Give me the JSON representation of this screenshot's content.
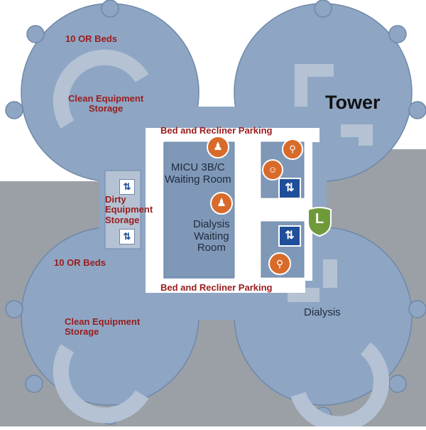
{
  "labels": {
    "or_beds_top": "10 OR Beds",
    "clean_storage_top": "Clean Equipment\nStorage",
    "tower": "Tower",
    "parking_top": "Bed and Recliner Parking",
    "micu": "MICU 3B/C\nWaiting Room",
    "dirty_storage": "Dirty\nEquipment\nStorage",
    "dialysis_waiting": "Dialysis\nWaiting\nRoom",
    "or_beds_bottom": "10 OR Beds",
    "parking_bottom": "Bed and Recliner Parking",
    "dialysis": "Dialysis",
    "clean_storage_bottom": "Clean Equipment\nStorage",
    "level_marker": "L"
  },
  "colors": {
    "background_ground": "#9aa0a6",
    "building": "#8ea6c4",
    "corridor": "#b4c2d4",
    "white_area": "#ffffff",
    "label_red": "#9a1c1c",
    "icon_orange": "#d86a2a",
    "elevator_blue": "#1f4e9a",
    "level_green": "#6f9a3a"
  }
}
